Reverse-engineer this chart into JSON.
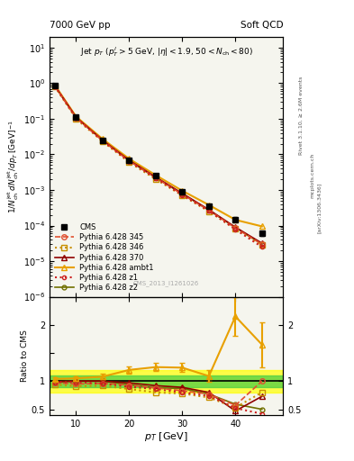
{
  "title_left": "7000 GeV pp",
  "title_right": "Soft QCD",
  "watermark": "CMS_2013_I1261026",
  "cms_x": [
    6,
    10,
    15,
    20,
    25,
    30,
    35,
    40,
    45
  ],
  "cms_y": [
    0.85,
    0.11,
    0.025,
    0.007,
    0.0025,
    0.0009,
    0.00035,
    0.00015,
    6e-05
  ],
  "cms_yerr": [
    0.05,
    0.008,
    0.002,
    0.0005,
    0.0002,
    7e-05,
    3e-05,
    2e-05,
    8e-06
  ],
  "p345_x": [
    6,
    10,
    15,
    20,
    25,
    30,
    35,
    40,
    45
  ],
  "p345_y": [
    0.82,
    0.105,
    0.024,
    0.0065,
    0.0022,
    0.00075,
    0.00027,
    8.5e-05,
    3e-05
  ],
  "p346_x": [
    6,
    10,
    15,
    20,
    25,
    30,
    35,
    40,
    45
  ],
  "p346_y": [
    0.8,
    0.1,
    0.023,
    0.006,
    0.002,
    0.0007,
    0.00025,
    8e-05,
    2.8e-05
  ],
  "p370_x": [
    6,
    10,
    15,
    20,
    25,
    30,
    35,
    40,
    45
  ],
  "p370_y": [
    0.84,
    0.11,
    0.025,
    0.0068,
    0.0023,
    0.0008,
    0.00028,
    9e-05,
    3.2e-05
  ],
  "pambt1_x": [
    6,
    10,
    15,
    20,
    25,
    30,
    35,
    40,
    45
  ],
  "pambt1_y": [
    0.88,
    0.115,
    0.027,
    0.0075,
    0.0026,
    0.00095,
    0.00038,
    0.000145,
    9.5e-05
  ],
  "pz1_x": [
    6,
    10,
    15,
    20,
    25,
    30,
    35,
    40,
    45
  ],
  "pz1_y": [
    0.83,
    0.108,
    0.024,
    0.0063,
    0.00215,
    0.00072,
    0.00026,
    7.8e-05,
    2.5e-05
  ],
  "pz2_x": [
    6,
    10,
    15,
    20,
    25,
    30,
    35,
    40,
    45
  ],
  "pz2_y": [
    0.84,
    0.11,
    0.025,
    0.0066,
    0.0022,
    0.00078,
    0.00027,
    8.8e-05,
    3e-05
  ],
  "ratio_p345": [
    0.97,
    0.95,
    0.96,
    0.93,
    0.88,
    0.83,
    0.77,
    0.57,
    1.0
  ],
  "ratio_p346": [
    0.94,
    0.91,
    0.92,
    0.86,
    0.8,
    0.78,
    0.71,
    0.53,
    0.8
  ],
  "ratio_p370": [
    0.99,
    1.0,
    1.0,
    0.97,
    0.92,
    0.89,
    0.8,
    0.47,
    0.73
  ],
  "ratio_pambt1": [
    1.04,
    1.05,
    1.08,
    1.2,
    1.25,
    1.24,
    1.09,
    2.15,
    1.65
  ],
  "ratio_pz1": [
    0.98,
    0.98,
    0.96,
    0.9,
    0.86,
    0.8,
    0.74,
    0.52,
    0.42
  ],
  "ratio_pz2": [
    0.99,
    1.0,
    1.0,
    0.94,
    0.88,
    0.87,
    0.77,
    0.59,
    0.5
  ],
  "ratio_pambt1_err": [
    0.03,
    0.04,
    0.05,
    0.06,
    0.07,
    0.08,
    0.1,
    0.35,
    0.4
  ],
  "color_cms": "#000000",
  "color_345": "#e05030",
  "color_346": "#c89000",
  "color_370": "#900000",
  "color_ambt1": "#e8a000",
  "color_z1": "#cc2020",
  "color_z2": "#707000",
  "bg_color": "#f5f5ee",
  "ylim_main": [
    1e-06,
    20
  ],
  "ylim_ratio": [
    0.4,
    2.5
  ],
  "xlim": [
    5,
    49
  ]
}
